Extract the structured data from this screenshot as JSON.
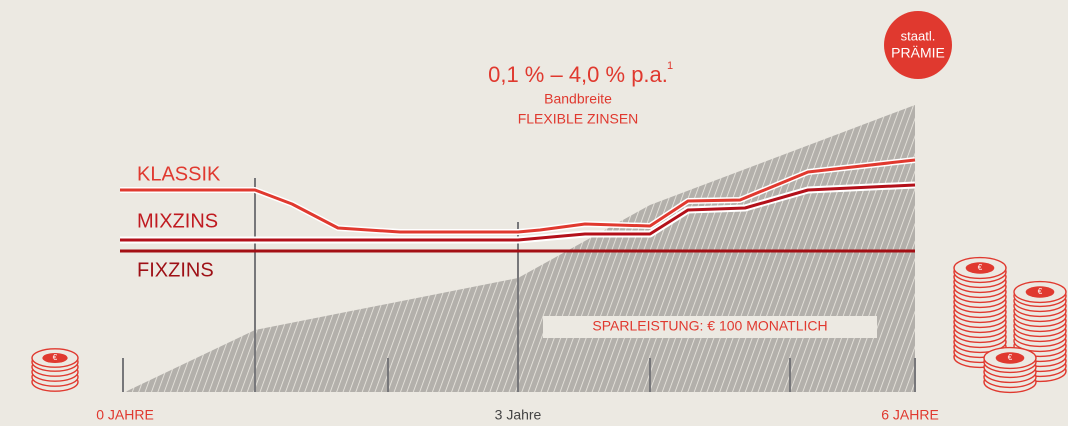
{
  "badge": {
    "line1": "staatl.",
    "line2": "PRÄMIE"
  },
  "headline": {
    "rate": "0,1 % – 4,0 % p.a.",
    "footnote": "1",
    "subtitle": "Bandbreite",
    "caption": "FLEXIBLE ZINSEN"
  },
  "lines": {
    "klassik": "KLASSIK",
    "mixzins": "MIXZINS",
    "fixzins": "FIXZINS"
  },
  "area_label": "SPARLEISTUNG: € 100 MONATLICH",
  "axis": {
    "start": "0 JAHRE",
    "middle": "3 Jahre",
    "end": "6 JAHRE"
  },
  "coin_symbol": "€"
}
